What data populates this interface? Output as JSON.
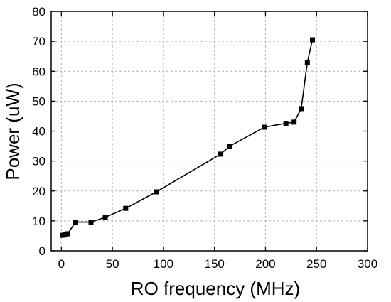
{
  "chart_data": {
    "type": "line",
    "title": "",
    "xlabel": "RO frequency (MHz)",
    "ylabel": "Power (uW)",
    "xlim": [
      -10,
      300
    ],
    "ylim": [
      0,
      80
    ],
    "xticks": [
      "0",
      "50",
      "100",
      "150",
      "200",
      "250",
      "300"
    ],
    "yticks": [
      "0",
      "10",
      "20",
      "30",
      "40",
      "50",
      "60",
      "70",
      "80"
    ],
    "grid": true,
    "marker": "square",
    "color": "#000000",
    "x": [
      1.5,
      3.5,
      6,
      14,
      29,
      43,
      63,
      93,
      156,
      165,
      199,
      220,
      228,
      235,
      241,
      246
    ],
    "y": [
      5.2,
      5.5,
      5.7,
      9.6,
      9.6,
      11.2,
      14.2,
      19.7,
      32.3,
      35.0,
      41.3,
      42.6,
      43.0,
      47.5,
      63.0,
      70.5
    ]
  }
}
